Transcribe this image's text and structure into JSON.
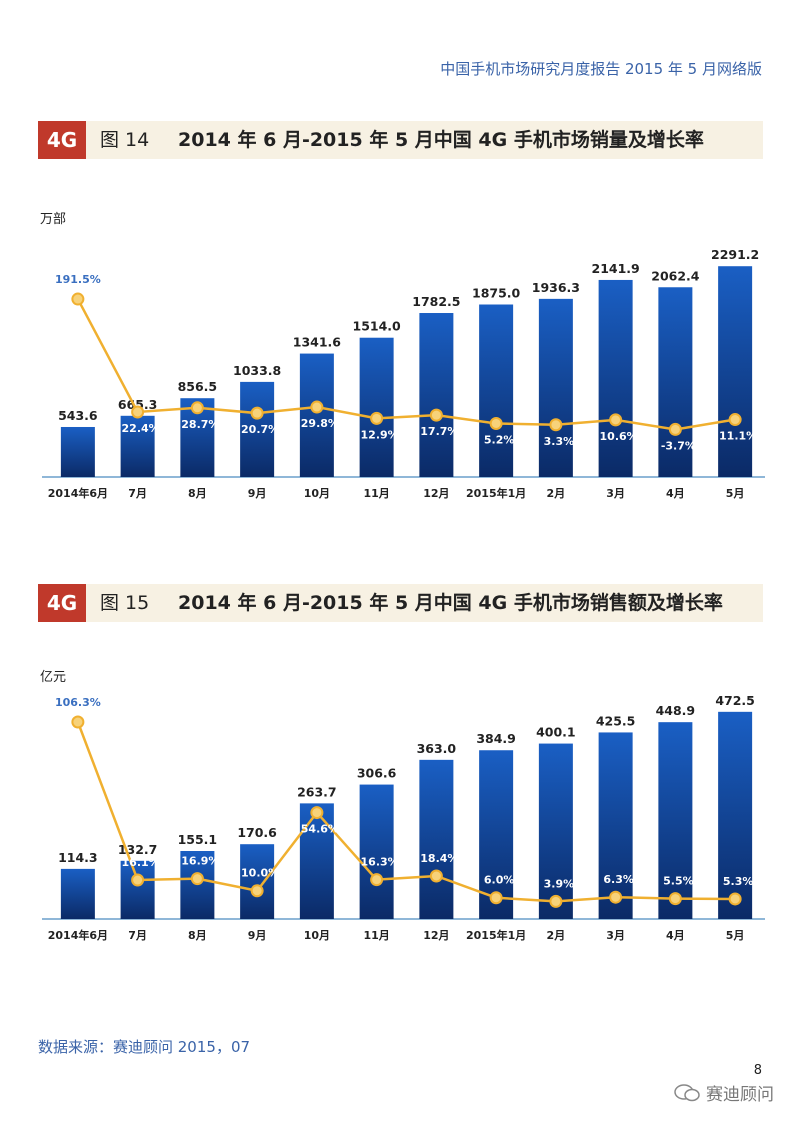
{
  "header": {
    "report_title": "中国手机市场研究月度报告    2015 年 5 月网络版"
  },
  "figures": [
    {
      "badge": "4G",
      "number": "图 14",
      "title": "2014 年 6 月-2015 年 5 月中国 4G 手机市场销量及增长率"
    },
    {
      "badge": "4G",
      "number": "图 15",
      "title": "2014 年 6 月-2015 年 5 月中国 4G 手机市场销售额及增长率"
    }
  ],
  "chart_data": [
    {
      "type": "bar",
      "unit_label": "万部",
      "categories": [
        "2014年6月",
        "7月",
        "8月",
        "9月",
        "10月",
        "11月",
        "12月",
        "2015年1月",
        "2月",
        "3月",
        "4月",
        "5月"
      ],
      "values": [
        543.6,
        665.3,
        856.5,
        1033.8,
        1341.6,
        1514.0,
        1782.5,
        1875.0,
        1936.3,
        2141.9,
        2062.4,
        2291.2
      ],
      "value_labels": [
        "543.6",
        "665.3",
        "856.5",
        "1033.8",
        "1341.6",
        "1514.0",
        "1782.5",
        "1875.0",
        "1936.3",
        "2141.9",
        "2062.4",
        "2291.2"
      ],
      "growth_rate": [
        191.5,
        22.4,
        28.7,
        20.7,
        29.8,
        12.9,
        17.7,
        5.2,
        3.3,
        10.6,
        -3.7,
        11.1
      ],
      "growth_labels": [
        "191.5%",
        "22.4%",
        "28.7%",
        "20.7%",
        "29.8%",
        "12.9%",
        "17.7%",
        "5.2%",
        "3.3%",
        "10.6%",
        "-3.7%",
        "11.1%"
      ],
      "ylim": [
        0,
        2500
      ],
      "rate_lim": [
        -30,
        220
      ],
      "bar_color": "#1a5fc4",
      "line_color": "#f0b030"
    },
    {
      "type": "bar",
      "unit_label": "亿元",
      "categories": [
        "2014年6月",
        "7月",
        "8月",
        "9月",
        "10月",
        "11月",
        "12月",
        "2015年1月",
        "2月",
        "3月",
        "4月",
        "5月"
      ],
      "values": [
        114.3,
        132.7,
        155.1,
        170.6,
        263.7,
        306.6,
        363.0,
        384.9,
        400.1,
        425.5,
        448.9,
        472.5
      ],
      "value_labels": [
        "114.3",
        "132.7",
        "155.1",
        "170.6",
        "263.7",
        "306.6",
        "363.0",
        "384.9",
        "400.1",
        "425.5",
        "448.9",
        "472.5"
      ],
      "growth_rate": [
        106.3,
        16.1,
        16.9,
        10.0,
        54.6,
        16.3,
        18.4,
        6.0,
        3.9,
        6.3,
        5.5,
        5.3
      ],
      "growth_labels": [
        "106.3%",
        "16.1%",
        "16.9%",
        "10.0%",
        "54.6%",
        "16.3%",
        "18.4%",
        "6.0%",
        "3.9%",
        "6.3%",
        "5.5%",
        "5.3%"
      ],
      "ylim": [
        0,
        520
      ],
      "rate_lim": [
        -5,
        120
      ],
      "bar_color": "#1a5fc4",
      "line_color": "#f0b030"
    }
  ],
  "footer": {
    "source": "数据来源：赛迪顾问  2015，07",
    "page_number": "8",
    "watermark": "赛迪顾问"
  }
}
